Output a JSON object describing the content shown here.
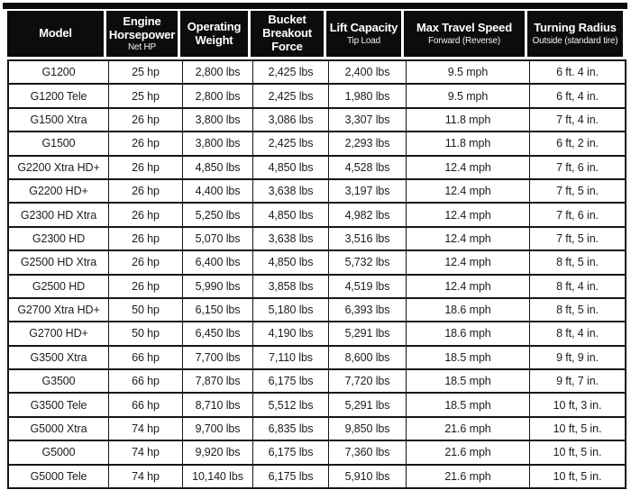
{
  "colors": {
    "header_background": "#0c0c0c",
    "header_text": "#ffffff",
    "body_text": "#1c1c1c",
    "border": "#151515",
    "row_background": "#ffffff"
  },
  "table": {
    "columns": [
      {
        "title": "Model",
        "subtitle": ""
      },
      {
        "title": "Engine Horsepower",
        "subtitle": "Net HP"
      },
      {
        "title": "Operating Weight",
        "subtitle": ""
      },
      {
        "title": "Bucket Breakout Force",
        "subtitle": ""
      },
      {
        "title": "Lift Capacity",
        "subtitle": "Tip Load"
      },
      {
        "title": "Max Travel Speed",
        "subtitle": "Forward (Reverse)"
      },
      {
        "title": "Turning Radius",
        "subtitle": "Outside (standard tire)"
      }
    ],
    "rows": [
      [
        "G1200",
        "25 hp",
        "2,800 lbs",
        "2,425 lbs",
        "2,400 lbs",
        "9.5 mph",
        "6 ft. 4 in."
      ],
      [
        "G1200 Tele",
        "25 hp",
        "2,800 lbs",
        "2,425 lbs",
        "1,980 lbs",
        "9.5 mph",
        "6 ft, 4 in."
      ],
      [
        "G1500 Xtra",
        "26 hp",
        "3,800 lbs",
        "3,086 lbs",
        "3,307 lbs",
        "11.8 mph",
        "7 ft, 4 in."
      ],
      [
        "G1500",
        "26 hp",
        "3,800 lbs",
        "2,425 lbs",
        "2,293 lbs",
        "11.8 mph",
        "6 ft, 2 in."
      ],
      [
        "G2200 Xtra HD+",
        "26 hp",
        "4,850 lbs",
        "4,850 lbs",
        "4,528 lbs",
        "12.4 mph",
        "7 ft, 6 in."
      ],
      [
        "G2200 HD+",
        "26 hp",
        "4,400 lbs",
        "3,638 lbs",
        "3,197 lbs",
        "12.4 mph",
        "7 ft, 5 in."
      ],
      [
        "G2300 HD Xtra",
        "26 hp",
        "5,250 lbs",
        "4,850 lbs",
        "4,982 lbs",
        "12.4 mph",
        "7 ft, 6 in."
      ],
      [
        "G2300 HD",
        "26 hp",
        "5,070 lbs",
        "3,638 lbs",
        "3,516 lbs",
        "12.4 mph",
        "7 ft, 5 in."
      ],
      [
        "G2500 HD Xtra",
        "26 hp",
        "6,400 lbs",
        "4,850 lbs",
        "5,732 lbs",
        "12.4 mph",
        "8 ft, 5 in."
      ],
      [
        "G2500 HD",
        "26 hp",
        "5,990 lbs",
        "3,858 lbs",
        "4,519 lbs",
        "12.4 mph",
        "8 ft, 4 in."
      ],
      [
        "G2700 Xtra HD+",
        "50 hp",
        "6,150 lbs",
        "5,180 lbs",
        "6,393 lbs",
        "18.6 mph",
        "8 ft, 5 in."
      ],
      [
        "G2700 HD+",
        "50 hp",
        "6,450 lbs",
        "4,190 lbs",
        "5,291 lbs",
        "18.6 mph",
        "8 ft, 4 in."
      ],
      [
        "G3500 Xtra",
        "66 hp",
        "7,700 lbs",
        "7,110 lbs",
        "8,600 lbs",
        "18.5 mph",
        "9 ft, 9 in."
      ],
      [
        "G3500",
        "66 hp",
        "7,870 lbs",
        "6,175 lbs",
        "7,720 lbs",
        "18.5 mph",
        "9 ft, 7 in."
      ],
      [
        "G3500 Tele",
        "66 hp",
        "8,710 lbs",
        "5,512 lbs",
        "5,291 lbs",
        "18.5 mph",
        "10 ft, 3 in."
      ],
      [
        "G5000 Xtra",
        "74 hp",
        "9,700 lbs",
        "6,835 lbs",
        "9,850 lbs",
        "21.6 mph",
        "10 ft, 5 in."
      ],
      [
        "G5000",
        "74 hp",
        "9,920 lbs",
        "6,175 lbs",
        "7,360 lbs",
        "21.6 mph",
        "10 ft, 5 in."
      ],
      [
        "G5000 Tele",
        "74 hp",
        "10,140 lbs",
        "6,175 lbs",
        "5,910 lbs",
        "21.6 mph",
        "10 ft, 5 in."
      ]
    ]
  }
}
